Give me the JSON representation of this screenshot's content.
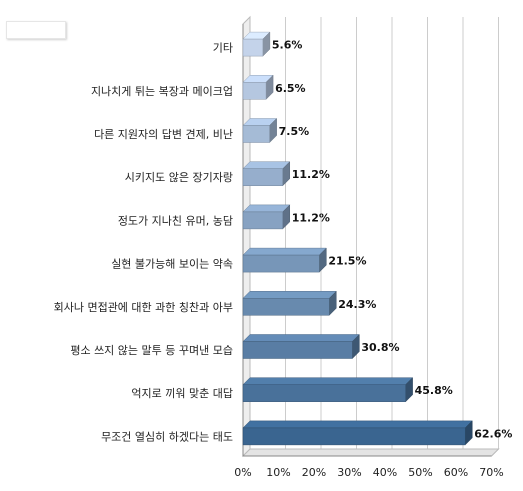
{
  "chart_data": {
    "type": "bar",
    "orientation": "horizontal",
    "categories": [
      "기타",
      "지나치게 튀는 복장과 메이크업",
      "다른 지원자의 답변 견제, 비난",
      "시키지도 않은 장기자랑",
      "정도가 지나친 유머, 농담",
      "실현 불가능해 보이는 약속",
      "회사나 면접관에 대한 과한 칭찬과 아부",
      "평소 쓰지 않는 말투 등 꾸며낸 모습",
      "억지로 끼워 맞춘 대답",
      "무조건 열심히 하겠다는 태도"
    ],
    "values": [
      5.6,
      6.5,
      7.5,
      11.2,
      11.2,
      21.5,
      24.3,
      30.8,
      45.8,
      62.6
    ],
    "value_labels": [
      "5.6%",
      "6.5%",
      "7.5%",
      "11.2%",
      "11.2%",
      "21.5%",
      "24.3%",
      "30.8%",
      "45.8%",
      "62.6%"
    ],
    "xlim": [
      0,
      70
    ],
    "x_ticks": [
      0,
      10,
      20,
      30,
      40,
      50,
      60,
      70
    ],
    "x_tick_labels": [
      "0%",
      "10%",
      "20%",
      "30%",
      "40%",
      "50%",
      "60%",
      "70%"
    ],
    "grid": true,
    "bar_colors_light_to_dark": [
      "#c4d3ea",
      "#3a6590"
    ]
  }
}
